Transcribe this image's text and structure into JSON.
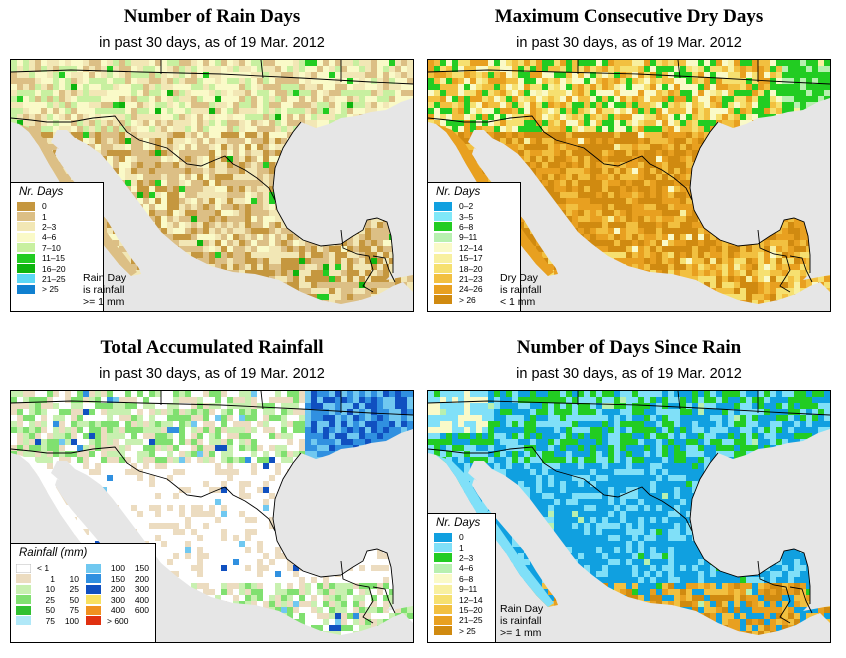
{
  "colors": {
    "sea": "#e6e6e6",
    "border": "#000000"
  },
  "panels": {
    "rain_days": {
      "title": "Number of Rain Days",
      "subtitle": "in past 30 days, as of  19 Mar. 2012",
      "legend_title": "Nr. Days",
      "legend": [
        {
          "label": "0",
          "color": "#c5973f"
        },
        {
          "label": "1",
          "color": "#dcbf85"
        },
        {
          "label": "2–3",
          "color": "#f2e7b5"
        },
        {
          "label": "4–6",
          "color": "#fafac8"
        },
        {
          "label": "7–10",
          "color": "#c8f0a0"
        },
        {
          "label": "11–15",
          "color": "#22cc22"
        },
        {
          "label": "16–20",
          "color": "#0eb40e"
        },
        {
          "label": "21–25",
          "color": "#5cd8f5"
        },
        {
          "label": "> 25",
          "color": "#1080d0"
        }
      ],
      "note": [
        "Rain Day",
        "is rainfall",
        ">= 1 mm"
      ]
    },
    "dry_days": {
      "title": "Maximum Consecutive Dry Days",
      "subtitle": "in past 30 days, as of  19 Mar. 2012",
      "legend_title": "Nr. Days",
      "legend": [
        {
          "label": "0–2",
          "color": "#10a0e0"
        },
        {
          "label": "3–5",
          "color": "#80e8f8"
        },
        {
          "label": "6–8",
          "color": "#22cc22"
        },
        {
          "label": "9–11",
          "color": "#b8f0b0"
        },
        {
          "label": "12–14",
          "color": "#fafac8"
        },
        {
          "label": "15–17",
          "color": "#f8f0a0"
        },
        {
          "label": "18–20",
          "color": "#f6e070"
        },
        {
          "label": "21–23",
          "color": "#f2c040"
        },
        {
          "label": "24–26",
          "color": "#e8a020"
        },
        {
          "label": "> 26",
          "color": "#d08a10"
        }
      ],
      "note": [
        "Dry Day",
        "is rainfall",
        "< 1 mm"
      ]
    },
    "total_rain": {
      "title": "Total Accumulated Rainfall",
      "subtitle": "in past 30 days, as of  19 Mar. 2012",
      "legend_title": "Rainfall (mm)",
      "legend_left": [
        {
          "lo": "< 1",
          "hi": "",
          "color": "#ffffff"
        },
        {
          "lo": "1",
          "hi": "10",
          "color": "#ecdcc0"
        },
        {
          "lo": "10",
          "hi": "25",
          "color": "#c8f0b0"
        },
        {
          "lo": "25",
          "hi": "50",
          "color": "#80e070"
        },
        {
          "lo": "50",
          "hi": "75",
          "color": "#30c030"
        },
        {
          "lo": "75",
          "hi": "100",
          "color": "#b0e8f8"
        }
      ],
      "legend_right": [
        {
          "lo": "100",
          "hi": "150",
          "color": "#70c8f0"
        },
        {
          "lo": "150",
          "hi": "200",
          "color": "#3090e0"
        },
        {
          "lo": "200",
          "hi": "300",
          "color": "#1050c0"
        },
        {
          "lo": "300",
          "hi": "400",
          "color": "#f8e060"
        },
        {
          "lo": "400",
          "hi": "600",
          "color": "#f09020"
        },
        {
          "lo": "> 600",
          "hi": "",
          "color": "#e03010"
        }
      ]
    },
    "since_rain": {
      "title": "Number of Days Since Rain",
      "subtitle": "in past 30 days, as of  19 Mar. 2012",
      "legend_title": "Nr. Days",
      "legend": [
        {
          "label": "0",
          "color": "#10a0e0"
        },
        {
          "label": "1",
          "color": "#80e0f8"
        },
        {
          "label": "2–3",
          "color": "#22cc22"
        },
        {
          "label": "4–6",
          "color": "#b8f0b0"
        },
        {
          "label": "6–8",
          "color": "#fafac8"
        },
        {
          "label": "9–11",
          "color": "#f8f0a0"
        },
        {
          "label": "12–14",
          "color": "#f6e070"
        },
        {
          "label": "15–20",
          "color": "#f2c040"
        },
        {
          "label": "21–25",
          "color": "#e8a020"
        },
        {
          "label": "> 25",
          "color": "#d08a10"
        }
      ],
      "note": [
        "Rain Day",
        "is rainfall",
        ">= 1 mm"
      ]
    }
  }
}
